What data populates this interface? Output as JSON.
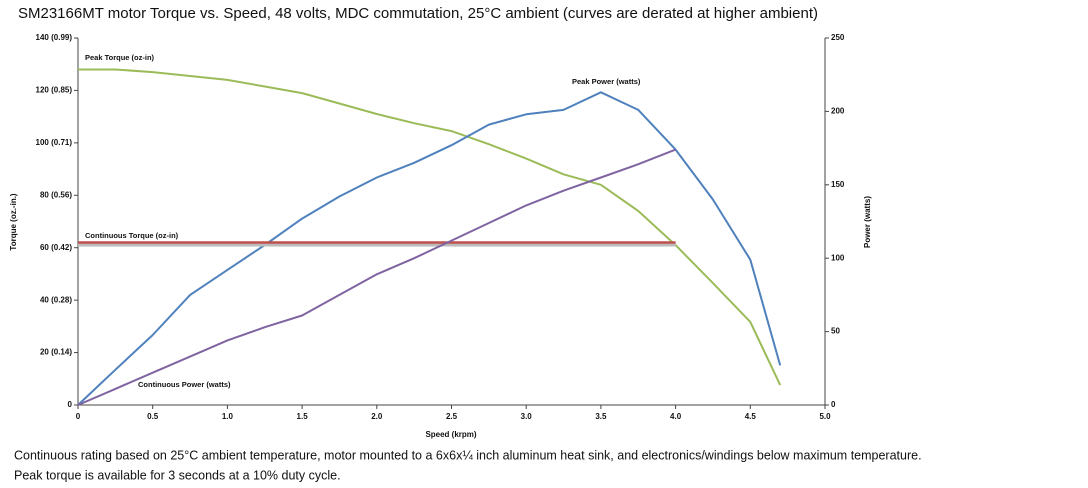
{
  "chart_data": {
    "type": "line",
    "title": "SM23166MT  motor Torque vs. Speed, 48 volts, MDC commutation, 25°C ambient (curves are derated at higher ambient)",
    "x_label": "Speed (krpm)",
    "y_label": "Torque (oz.-in.)",
    "y2_label": "Power (watts)",
    "notes": [
      "Continuous rating based on 25°C ambient temperature, motor mounted to a 6x6x¼ inch aluminum heat sink, and electronics/windings below maximum temperature.",
      "Peak torque is available for 3 seconds at a 10% duty cycle."
    ],
    "x": [
      0,
      0.25,
      0.5,
      0.75,
      1.0,
      1.25,
      1.5,
      1.75,
      2.0,
      2.25,
      2.5,
      2.75,
      3.0,
      3.25,
      3.5,
      3.75,
      4.0,
      4.25,
      4.5,
      4.7
    ],
    "series": [
      {
        "name": "Peak Torque (oz-in)",
        "color": "#9bbb59",
        "axis": "y",
        "values": [
          128,
          128,
          127,
          125.5,
          124,
          121.5,
          119,
          115,
          111,
          107.5,
          104.5,
          99.5,
          94,
          88,
          84,
          74,
          61,
          46.5,
          31.7,
          7.6
        ]
      },
      {
        "name": "Peak Power (watts)",
        "color": "#4f81bd",
        "axis": "y2",
        "values": [
          0,
          24,
          47.7,
          75,
          92,
          109,
          127,
          142,
          155,
          165,
          177,
          191,
          198,
          201,
          213,
          201,
          174,
          140,
          99,
          27
        ]
      },
      {
        "name": "Continuous Torque (oz-in)",
        "color": "#c0504d",
        "axis": "y",
        "values": [
          62,
          62,
          62,
          62,
          62,
          62,
          62,
          62,
          62,
          62,
          62,
          62,
          62,
          62,
          62,
          62,
          62,
          null,
          null,
          null
        ]
      },
      {
        "name": "Continuous Power (watts)",
        "color": "#8064a2",
        "axis": "y2",
        "values": [
          0,
          11,
          22,
          33,
          44,
          53,
          61,
          75,
          89,
          100,
          112,
          124,
          136,
          146,
          155,
          164,
          174,
          null,
          null,
          null
        ]
      }
    ],
    "xlim": [
      0,
      5.0
    ],
    "xticks": [
      0,
      0.5,
      {
        "value": 1,
        "label": "1.0"
      },
      1.5,
      {
        "value": 2,
        "label": "2.0"
      },
      2.5,
      {
        "value": 3,
        "label": "3.0"
      },
      3.5,
      {
        "value": 4,
        "label": "4.0"
      },
      4.5,
      {
        "value": 5,
        "label": "5.0"
      }
    ],
    "ylim": [
      0,
      140
    ],
    "yticks": [
      0,
      {
        "value": 20,
        "label": "20 (0.14)"
      },
      {
        "value": 40,
        "label": "40 (0.28)"
      },
      {
        "value": 60,
        "label": "60 (0.42)"
      },
      {
        "value": 80,
        "label": "80 (0.56)"
      },
      {
        "value": 100,
        "label": "100 (0.71)"
      },
      {
        "value": 120,
        "label": "120 (0.85)"
      },
      {
        "value": 140,
        "label": "140 (0.99)"
      }
    ],
    "y2lim": [
      0,
      250
    ],
    "y2ticks": [
      0,
      50,
      100,
      150,
      200,
      250
    ]
  }
}
